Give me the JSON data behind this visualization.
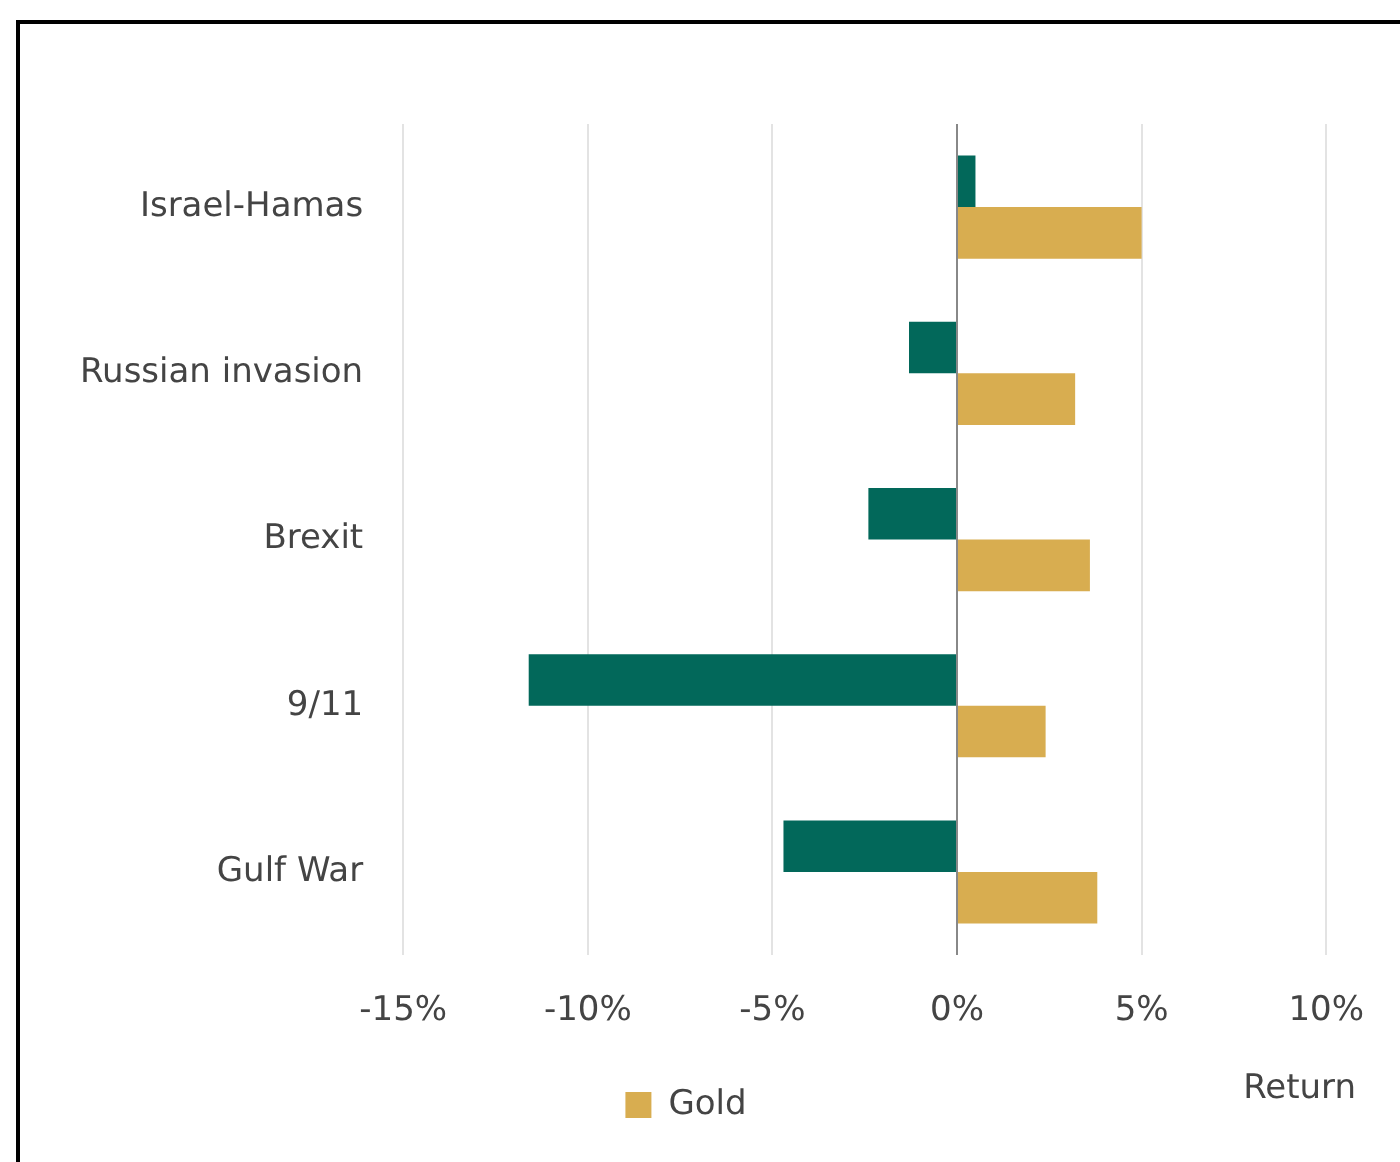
{
  "chart_data": {
    "type": "bar",
    "orientation": "horizontal",
    "categories": [
      "Israel-Hamas",
      "Russian invasion",
      "Brexit",
      "9/11",
      "Gulf War"
    ],
    "series": [
      {
        "color": "#02685a",
        "values": [
          0.5,
          -1.3,
          -2.4,
          -11.6,
          -4.7
        ]
      },
      {
        "name": "Gold",
        "color": "#d8ad50",
        "values": [
          5.0,
          3.2,
          3.6,
          2.4,
          3.8
        ]
      }
    ],
    "xlabel": "Return",
    "xlim": [
      -15,
      10
    ],
    "xticks": [
      {
        "value": -15,
        "label": "-15%"
      },
      {
        "value": -10,
        "label": "-10%"
      },
      {
        "value": -5,
        "label": "-5%"
      },
      {
        "value": 0,
        "label": "0%"
      },
      {
        "value": 5,
        "label": "5%"
      },
      {
        "value": 10,
        "label": "10%"
      }
    ],
    "grid": "x",
    "legend": "bottom"
  }
}
